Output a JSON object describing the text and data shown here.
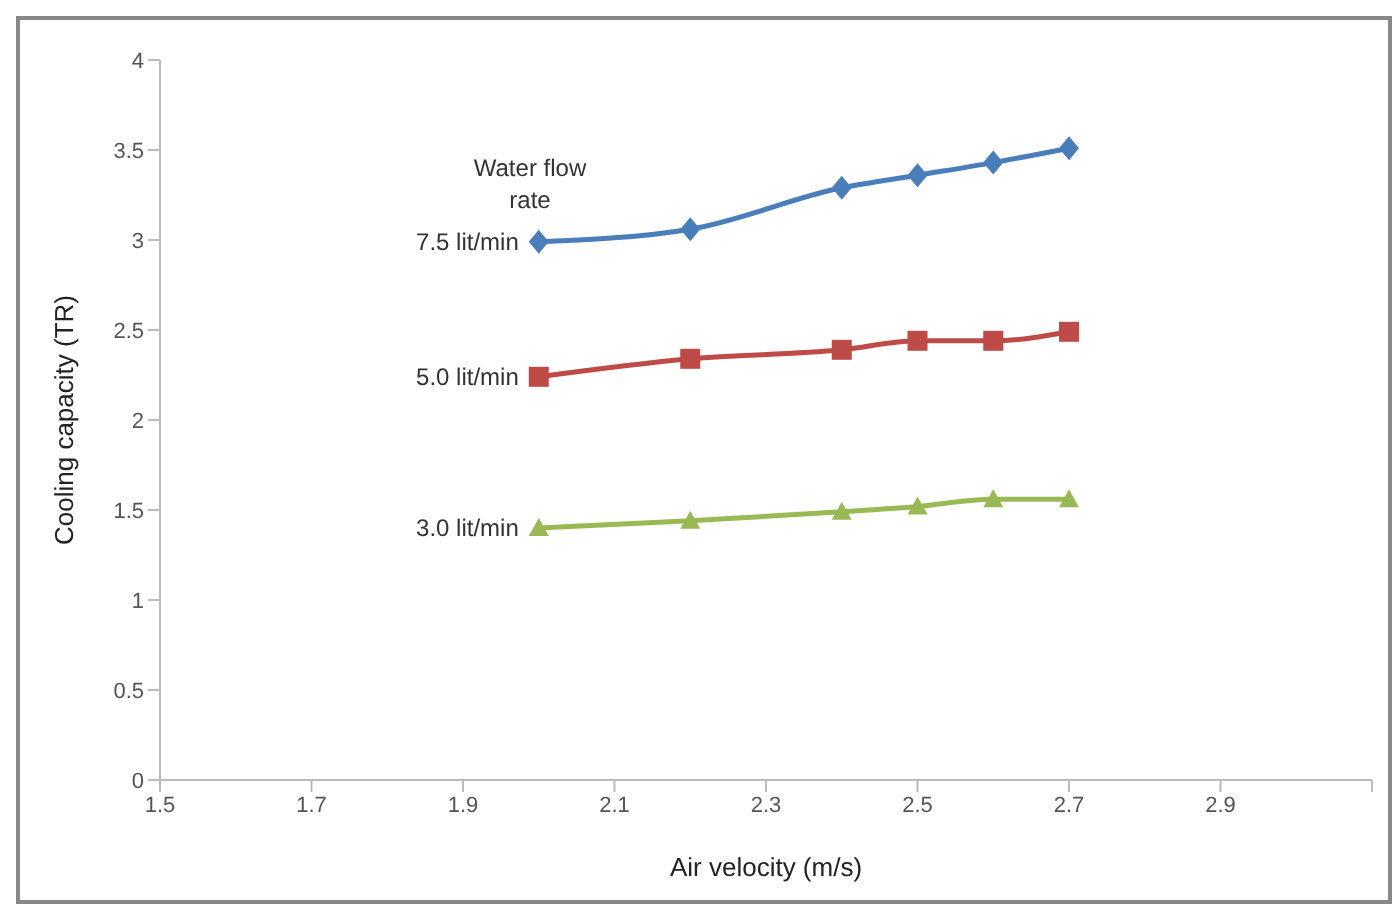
{
  "chart_data": {
    "type": "line",
    "xlabel": "Air velocity (m/s)",
    "ylabel": "Cooling capacity (TR)",
    "annotations": [
      "Water flow rate"
    ],
    "x": [
      2.0,
      2.2,
      2.4,
      2.5,
      2.6,
      2.7
    ],
    "series": [
      {
        "name": "7.5 lit/min",
        "color": "#4a7ebb",
        "marker": "diamond",
        "values": [
          2.99,
          3.06,
          3.29,
          3.36,
          3.43,
          3.51
        ]
      },
      {
        "name": "5.0 lit/min",
        "color": "#be4b48",
        "marker": "square",
        "values": [
          2.24,
          2.34,
          2.39,
          2.44,
          2.44,
          2.49
        ]
      },
      {
        "name": "3.0 lit/min",
        "color": "#98b954",
        "marker": "triangle",
        "values": [
          1.4,
          1.44,
          1.49,
          1.52,
          1.56,
          1.56
        ]
      }
    ],
    "xlim": [
      1.5,
      3.1
    ],
    "xticks": [
      1.5,
      1.7,
      1.9,
      2.1,
      2.3,
      2.5,
      2.7,
      2.9,
      {
        "value": 3.1,
        "label": null
      }
    ],
    "ylim": [
      0,
      4
    ],
    "yticks": [
      0,
      0.5,
      1,
      1.5,
      2,
      2.5,
      3,
      3.5,
      4
    ],
    "grid": false,
    "legend": false,
    "line_style": "solid"
  }
}
